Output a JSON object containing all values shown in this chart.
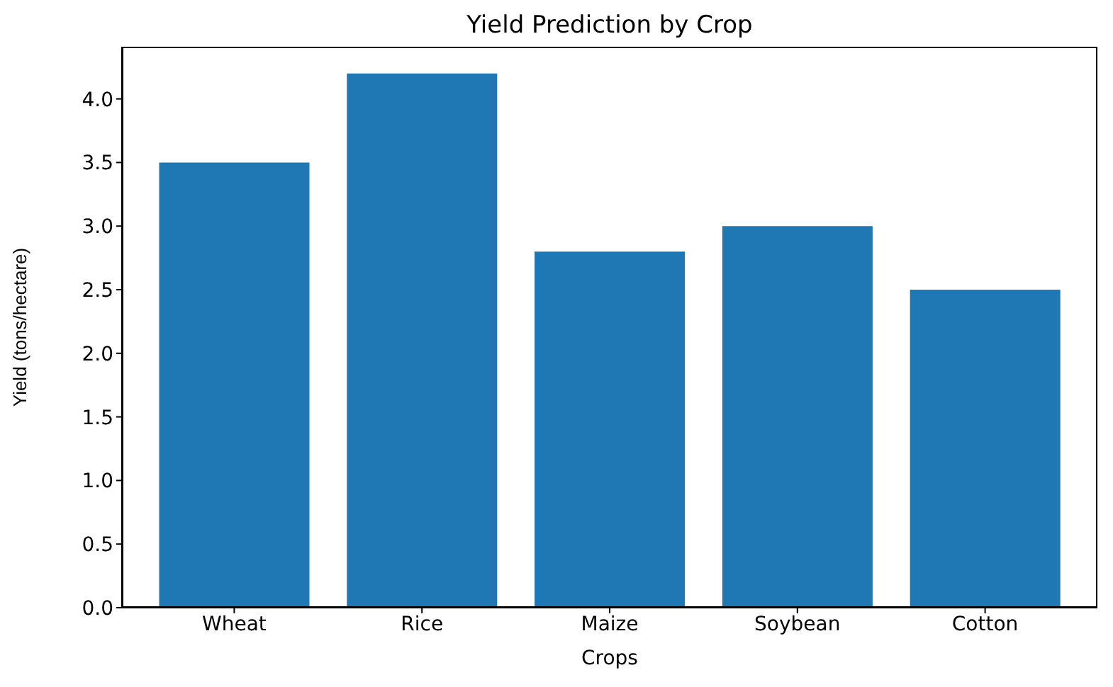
{
  "chart_data": {
    "type": "bar",
    "title": "Yield Prediction by Crop",
    "xlabel": "Crops",
    "ylabel": "Yield (tons/hectare)",
    "categories": [
      "Wheat",
      "Rice",
      "Maize",
      "Soybean",
      "Cotton"
    ],
    "values": [
      3.5,
      4.2,
      2.8,
      3.0,
      2.5
    ],
    "color": "#1f77b4",
    "ylim": [
      0,
      4.41
    ],
    "yticks": [
      {
        "value": 0,
        "label": "0.0"
      },
      0.5,
      {
        "value": 1,
        "label": "1.0"
      },
      1.5,
      {
        "value": 2,
        "label": "2.0"
      },
      2.5,
      {
        "value": 3,
        "label": "3.0"
      },
      3.5,
      {
        "value": 4,
        "label": "4.0"
      }
    ],
    "grid": false,
    "legend": false
  }
}
